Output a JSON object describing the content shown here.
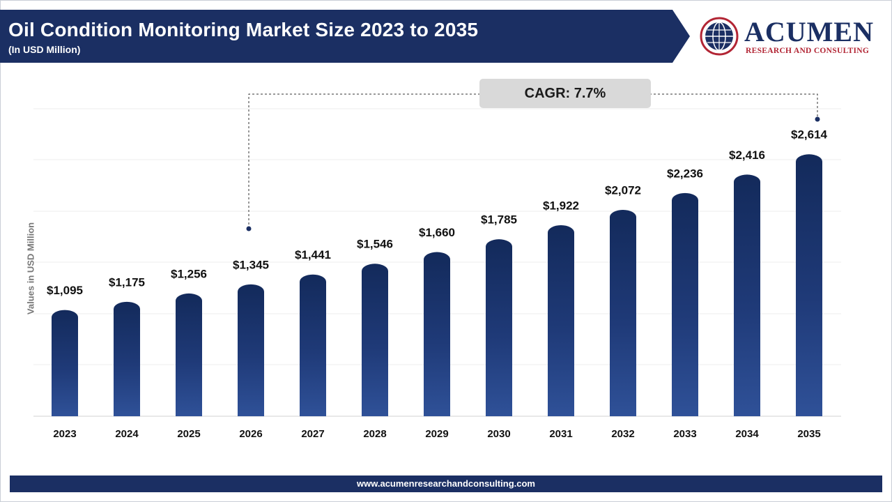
{
  "header": {
    "title": "Oil Condition Monitoring Market Size 2023 to 2035",
    "subtitle": "(In USD Million)"
  },
  "logo": {
    "name": "ACUMEN",
    "tagline": "RESEARCH AND CONSULTING",
    "icon": "globe-icon"
  },
  "cagr": "CAGR: 7.7%",
  "footer": {
    "url": "www.acumenresearchandconsulting.com"
  },
  "colors": {
    "header": "#1b2f63",
    "bar_top": "#132a5b",
    "bar_bottom": "#2f5198",
    "cagr_box": "#d9d9d9"
  },
  "chart_data": {
    "type": "bar",
    "title": "Oil Condition Monitoring Market Size 2023 to 2035",
    "subtitle": "(In USD Million)",
    "ylabel": "Values in USD Million",
    "xlabel": "",
    "categories": [
      "2023",
      "2024",
      "2025",
      "2026",
      "2027",
      "2028",
      "2029",
      "2030",
      "2031",
      "2032",
      "2033",
      "2034",
      "2035"
    ],
    "values": [
      1095,
      1175,
      1256,
      1345,
      1441,
      1546,
      1660,
      1785,
      1922,
      2072,
      2236,
      2416,
      2614
    ],
    "labels": [
      "$1,095",
      "$1,175",
      "$1,256",
      "$1,345",
      "$1,441",
      "$1,546",
      "$1,660",
      "$1,785",
      "$1,922",
      "$2,072",
      "$2,236",
      "$2,416",
      "$2,614"
    ],
    "ylim": [
      0,
      3000
    ],
    "grid": true,
    "annotation": "CAGR: 7.7%"
  }
}
